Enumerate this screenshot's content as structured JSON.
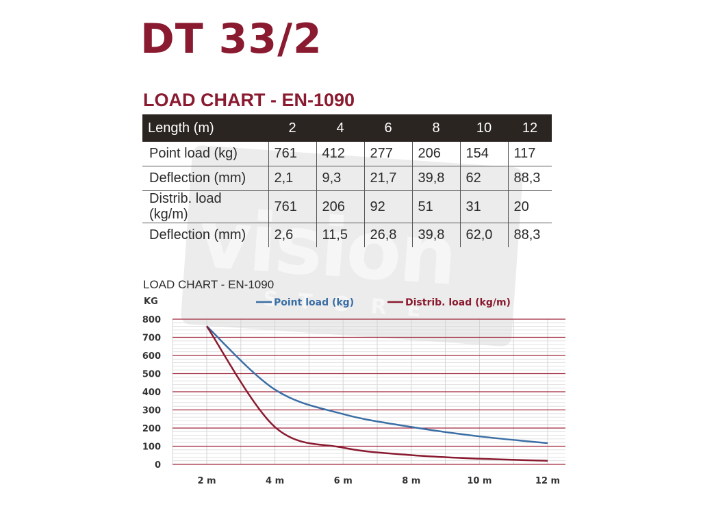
{
  "brand": {
    "title": "DT 33/2",
    "watermark": "vision",
    "watermark_sub": "STORE"
  },
  "table": {
    "title": "LOAD CHART - EN-1090",
    "header": [
      "Length (m)",
      "2",
      "4",
      "6",
      "8",
      "10",
      "12"
    ],
    "rows": [
      [
        "Point load (kg)",
        "761",
        "412",
        "277",
        "206",
        "154",
        "117"
      ],
      [
        "Deflection (mm)",
        "2,1",
        "9,3",
        "21,7",
        "39,8",
        "62",
        "88,3"
      ],
      [
        "Distrib. load (kg/m)",
        "761",
        "206",
        "92",
        "51",
        "31",
        "20"
      ],
      [
        "Deflection (mm)",
        "2,6",
        "11,5",
        "26,8",
        "39,8",
        "62,0",
        "88,3"
      ]
    ]
  },
  "colors": {
    "brand": "#8a1a30",
    "point": "#3a6ea5",
    "distrib": "#8a1a30",
    "grid_major": "#a0283c",
    "header_bg": "#2b2522"
  },
  "chart_data": {
    "type": "line",
    "title": "LOAD CHART - EN-1090",
    "ylabel": "KG",
    "xlabel": "",
    "x": [
      2,
      4,
      6,
      8,
      10,
      12
    ],
    "x_tick_labels": [
      "2 m",
      "4 m",
      "6 m",
      "8 m",
      "10 m",
      "12 m"
    ],
    "y_ticks": [
      0,
      100,
      200,
      300,
      400,
      500,
      600,
      700,
      800
    ],
    "ylim": [
      0,
      800
    ],
    "xlim": [
      2,
      12
    ],
    "grid": true,
    "legend_position": "top",
    "series": [
      {
        "name": "Point load (kg)",
        "color": "#3a6ea5",
        "values": [
          761,
          412,
          277,
          206,
          154,
          117
        ]
      },
      {
        "name": "Distrib. load (kg/m)",
        "color": "#8a1a30",
        "values": [
          761,
          206,
          92,
          51,
          31,
          20
        ]
      }
    ]
  }
}
